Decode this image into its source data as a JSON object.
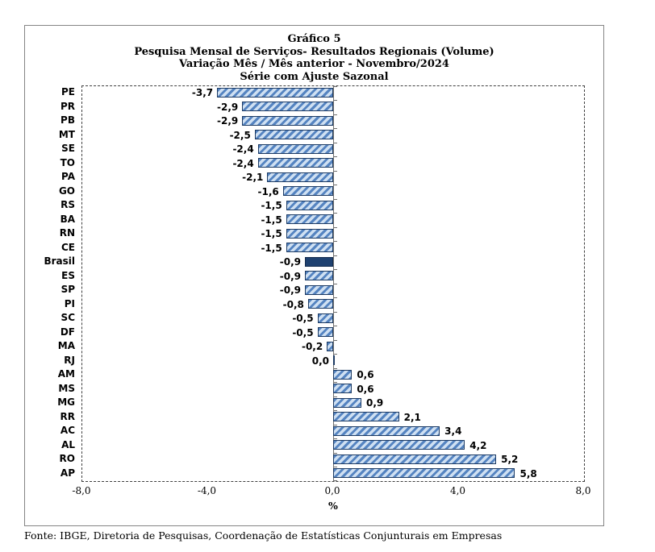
{
  "footer": "Fonte: IBGE, Diretoria de Pesquisas, Coordenação de Estatísticas Conjunturais em Empresas",
  "chart_data": {
    "type": "bar",
    "orientation": "horizontal",
    "title_lines": [
      "Gráfico 5",
      "Pesquisa Mensal de Serviços- Resultados Regionais (Volume)",
      "Variação Mês / Mês anterior - Novembro/2024",
      "Série com Ajuste Sazonal"
    ],
    "categories": [
      "PE",
      "PR",
      "PB",
      "MT",
      "SE",
      "TO",
      "PA",
      "GO",
      "RS",
      "BA",
      "RN",
      "CE",
      "Brasil",
      "ES",
      "SP",
      "PI",
      "SC",
      "DF",
      "MA",
      "RJ",
      "AM",
      "MS",
      "MG",
      "RR",
      "AC",
      "AL",
      "RO",
      "AP"
    ],
    "values": [
      -3.7,
      -2.9,
      -2.9,
      -2.5,
      -2.4,
      -2.4,
      -2.1,
      -1.6,
      -1.5,
      -1.5,
      -1.5,
      -1.5,
      -0.9,
      -0.9,
      -0.9,
      -0.8,
      -0.5,
      -0.5,
      -0.2,
      0.0,
      0.6,
      0.6,
      0.9,
      2.1,
      3.4,
      4.2,
      5.2,
      5.8
    ],
    "value_labels": [
      "-3,7",
      "-2,9",
      "-2,9",
      "-2,5",
      "-2,4",
      "-2,4",
      "-2,1",
      "-1,6",
      "-1,5",
      "-1,5",
      "-1,5",
      "-1,5",
      "-0,9",
      "-0,9",
      "-0,9",
      "-0,8",
      "-0,5",
      "-0,5",
      "-0,2",
      "0,0",
      "0,6",
      "0,6",
      "0,9",
      "2,1",
      "3,4",
      "4,2",
      "5,2",
      "5,8"
    ],
    "highlight": "Brasil",
    "xlabel": "%",
    "xlim": [
      -8.0,
      8.0
    ],
    "x_ticks": [
      "-8,0",
      "-4,0",
      "0,0",
      "4,0",
      "8,0"
    ],
    "grid": false,
    "legend": false,
    "colors": {
      "bar_fill": "#cfe0f2",
      "bar_stripe": "#5584c1",
      "bar_border": "#1c3a63",
      "highlight_fill": "#1f4170",
      "highlight_border": "#142c4e",
      "axis_line": "#6f6f6f"
    }
  }
}
